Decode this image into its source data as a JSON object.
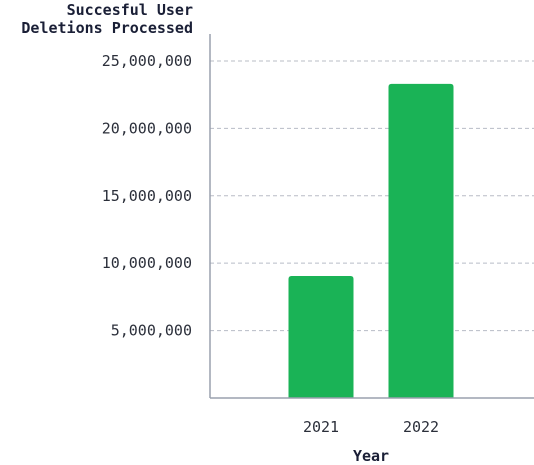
{
  "chart_data": {
    "type": "bar",
    "categories": [
      "2021",
      "2022"
    ],
    "values": [
      9050000,
      23300000
    ],
    "ylabel_lines": [
      "Succesful User",
      "Deletions Processed"
    ],
    "xlabel": "Year",
    "ylim": [
      0,
      27000000
    ],
    "y_ticks": [
      5000000,
      10000000,
      15000000,
      20000000,
      25000000
    ],
    "y_tick_labels": [
      "5,000,000",
      "10,000,000",
      "15,000,000",
      "20,000,000",
      "25,000,000"
    ],
    "grid": true,
    "bar_color": "#1ab356",
    "grid_color": "#b8bcc6",
    "axis_color": "#9aa0ad"
  }
}
